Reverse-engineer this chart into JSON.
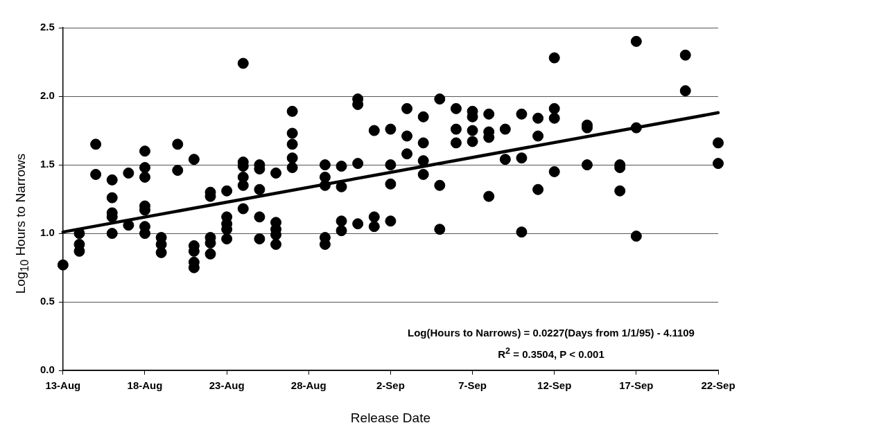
{
  "chart_data": {
    "type": "scatter",
    "xlabel": "Release Date",
    "ylabel": "Log$_{10}$ Hours to Narrows",
    "xlim": [
      "--08-13",
      "--09-22"
    ],
    "xticks": [
      {
        "value": "--08-13",
        "label": "13-Aug"
      },
      {
        "value": "--08-18",
        "label": "18-Aug"
      },
      {
        "value": "--08-23",
        "label": "23-Aug"
      },
      {
        "value": "--08-28",
        "label": "28-Aug"
      },
      {
        "value": "--09-02",
        "label": "2-Sep"
      },
      {
        "value": "--09-07",
        "label": "7-Sep"
      },
      {
        "value": "--09-12",
        "label": "12-Sep"
      },
      {
        "value": "--09-17",
        "label": "17-Sep"
      },
      {
        "value": "--09-22",
        "label": "22-Sep"
      }
    ],
    "ylim": [
      0,
      2.5
    ],
    "yticks": [
      {
        "value": 0,
        "label": "0.0"
      },
      {
        "value": 0.5,
        "label": "0.5"
      },
      {
        "value": 1,
        "label": "1.0"
      },
      {
        "value": 1.5,
        "label": "1.5"
      },
      {
        "value": 2,
        "label": "2.0"
      },
      {
        "value": 2.5,
        "label": "2.5"
      }
    ],
    "grid": "y",
    "legend": false,
    "marker": "circle",
    "series": [
      {
        "color": "#000000",
        "x": [
          "--08-13",
          "--08-14",
          "--08-14",
          "--08-14",
          "--08-15",
          "--08-15",
          "--08-16",
          "--08-16",
          "--08-16",
          "--08-16",
          "--08-16",
          "--08-17",
          "--08-17",
          "--08-18",
          "--08-18",
          "--08-18",
          "--08-18",
          "--08-18",
          "--08-18",
          "--08-18",
          "--08-19",
          "--08-19",
          "--08-19",
          "--08-20",
          "--08-20",
          "--08-21",
          "--08-21",
          "--08-21",
          "--08-21",
          "--08-21",
          "--08-22",
          "--08-22",
          "--08-22",
          "--08-22",
          "--08-22",
          "--08-23",
          "--08-23",
          "--08-23",
          "--08-23",
          "--08-23",
          "--08-24",
          "--08-24",
          "--08-24",
          "--08-24",
          "--08-24",
          "--08-24",
          "--08-25",
          "--08-25",
          "--08-25",
          "--08-25",
          "--08-25",
          "--08-26",
          "--08-26",
          "--08-26",
          "--08-26",
          "--08-26",
          "--08-27",
          "--08-27",
          "--08-27",
          "--08-27",
          "--08-27",
          "--08-29",
          "--08-29",
          "--08-29",
          "--08-29",
          "--08-29",
          "--08-30",
          "--08-30",
          "--08-30",
          "--08-30",
          "--08-31",
          "--08-31",
          "--08-31",
          "--08-31",
          "--09-01",
          "--09-01",
          "--09-01",
          "--09-02",
          "--09-02",
          "--09-02",
          "--09-02",
          "--09-03",
          "--09-03",
          "--09-03",
          "--09-04",
          "--09-04",
          "--09-04",
          "--09-04",
          "--09-05",
          "--09-05",
          "--09-05",
          "--09-06",
          "--09-06",
          "--09-06",
          "--09-07",
          "--09-07",
          "--09-07",
          "--09-07",
          "--09-08",
          "--09-08",
          "--09-08",
          "--09-08",
          "--09-09",
          "--09-09",
          "--09-10",
          "--09-10",
          "--09-10",
          "--09-11",
          "--09-11",
          "--09-11",
          "--09-12",
          "--09-12",
          "--09-12",
          "--09-12",
          "--09-14",
          "--09-14",
          "--09-14",
          "--09-16",
          "--09-16",
          "--09-16",
          "--09-17",
          "--09-17",
          "--09-17",
          "--09-20",
          "--09-20",
          "--09-22",
          "--09-22"
        ],
        "values": [
          0.77,
          1.0,
          0.92,
          0.87,
          1.65,
          1.43,
          1.39,
          1.26,
          1.15,
          1.12,
          1.0,
          1.44,
          1.06,
          1.6,
          1.48,
          1.41,
          1.2,
          1.17,
          1.05,
          1.0,
          0.97,
          0.92,
          0.86,
          1.65,
          1.46,
          1.54,
          0.91,
          0.87,
          0.79,
          0.75,
          1.3,
          1.27,
          0.97,
          0.93,
          0.85,
          1.31,
          1.12,
          1.07,
          1.03,
          0.96,
          2.24,
          1.52,
          1.49,
          1.41,
          1.35,
          1.18,
          1.5,
          1.47,
          1.32,
          1.12,
          0.96,
          1.44,
          1.08,
          1.03,
          0.99,
          0.92,
          1.89,
          1.73,
          1.65,
          1.55,
          1.48,
          1.5,
          1.41,
          1.35,
          0.97,
          0.92,
          1.49,
          1.34,
          1.09,
          1.02,
          1.98,
          1.94,
          1.51,
          1.07,
          1.75,
          1.12,
          1.05,
          1.76,
          1.5,
          1.36,
          1.09,
          1.91,
          1.71,
          1.58,
          1.85,
          1.66,
          1.53,
          1.43,
          1.98,
          1.35,
          1.03,
          1.91,
          1.76,
          1.66,
          1.89,
          1.85,
          1.75,
          1.67,
          1.87,
          1.74,
          1.7,
          1.27,
          1.76,
          1.54,
          1.87,
          1.55,
          1.01,
          1.84,
          1.71,
          1.32,
          2.28,
          1.91,
          1.84,
          1.45,
          1.79,
          1.77,
          1.5,
          1.5,
          1.48,
          1.31,
          2.4,
          1.77,
          0.98,
          2.3,
          2.04,
          1.66,
          1.51
        ]
      },
      {
        "type": "line",
        "color": "#000000",
        "marker": "none",
        "x": [
          "--08-13",
          "--09-22"
        ],
        "values": [
          1.01,
          1.88
        ]
      }
    ],
    "annotations": [
      "Log(Hours to Narrows) = 0.0227(Days from 1/1/95) - 4.1109",
      "R$^{2}$ = 0.3504, P < 0.001"
    ]
  }
}
